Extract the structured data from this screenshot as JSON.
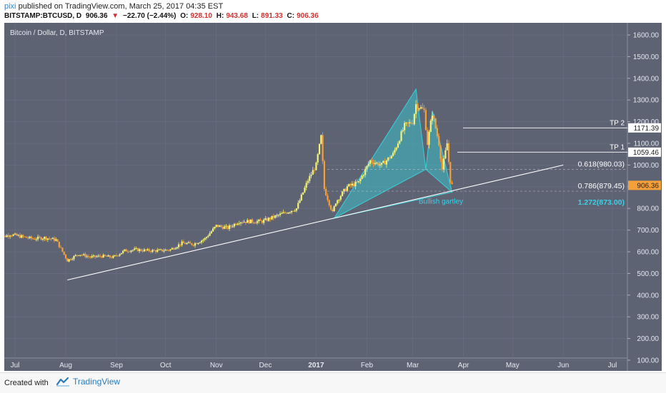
{
  "header": {
    "author": "pixi",
    "published_text": "published on TradingView.com, March 25, 2017 04:35 EST",
    "symbol": "BITSTAMP:BTCUSD, D",
    "last": "906.36",
    "change_arrow": "▼",
    "change": "−22.70 (−2.44%)",
    "o_label": "O:",
    "o_value": "928.10",
    "h_label": "H:",
    "h_value": "943.68",
    "l_label": "L:",
    "l_value": "891.33",
    "c_label": "C:",
    "c_value": "906.36"
  },
  "footer": {
    "created_with": "Created with",
    "brand": "TradingView",
    "logo_icon": "tradingview-logo-icon"
  },
  "colors": {
    "background": "#5e6374",
    "candle_up": "#f2f37a",
    "candle_down": "#f6a03a",
    "pattern_fill": "#3cc0c9",
    "pattern_line": "#3ad1d8",
    "gartley_label": "#3ad1e8",
    "trendline": "#ffffff",
    "price_badge": "#f6a03a"
  },
  "chart_data": {
    "type": "candlestick",
    "title": "Bitcoin / Dollar, D, BITSTAMP",
    "x_ticks": [
      "Jul",
      "Aug",
      "Sep",
      "Oct",
      "Nov",
      "Dec",
      "2017",
      "Feb",
      "Mar",
      "Apr",
      "May",
      "Jun",
      "Jul"
    ],
    "y_ticks": [
      "1600.00",
      "1500.00",
      "1400.00",
      "1300.00",
      "1200.00",
      "1100.00",
      "1000.00",
      "900.00",
      "800.00",
      "700.00",
      "600.00",
      "500.00",
      "400.00",
      "300.00",
      "200.00",
      "100.00"
    ],
    "ylim": [
      100,
      1650
    ],
    "grid": true,
    "price_path": [
      [
        "2016-06-20",
        660
      ],
      [
        "2016-06-28",
        680
      ],
      [
        "2016-07-05",
        670
      ],
      [
        "2016-07-12",
        660
      ],
      [
        "2016-07-19",
        665
      ],
      [
        "2016-07-26",
        655
      ],
      [
        "2016-08-02",
        560
      ],
      [
        "2016-08-09",
        590
      ],
      [
        "2016-08-16",
        575
      ],
      [
        "2016-08-23",
        580
      ],
      [
        "2016-08-30",
        575
      ],
      [
        "2016-09-06",
        605
      ],
      [
        "2016-09-13",
        610
      ],
      [
        "2016-09-20",
        605
      ],
      [
        "2016-09-27",
        605
      ],
      [
        "2016-10-04",
        610
      ],
      [
        "2016-10-11",
        640
      ],
      [
        "2016-10-18",
        635
      ],
      [
        "2016-10-25",
        660
      ],
      [
        "2016-11-01",
        720
      ],
      [
        "2016-11-08",
        710
      ],
      [
        "2016-11-15",
        740
      ],
      [
        "2016-11-22",
        740
      ],
      [
        "2016-11-29",
        740
      ],
      [
        "2016-12-06",
        760
      ],
      [
        "2016-12-13",
        780
      ],
      [
        "2016-12-20",
        800
      ],
      [
        "2016-12-27",
        930
      ],
      [
        "2017-01-01",
        1000
      ],
      [
        "2017-01-04",
        1130
      ],
      [
        "2017-01-06",
        890
      ],
      [
        "2017-01-11",
        780
      ],
      [
        "2017-01-13",
        830
      ],
      [
        "2017-01-20",
        900
      ],
      [
        "2017-01-27",
        920
      ],
      [
        "2017-02-03",
        1020
      ],
      [
        "2017-02-10",
        1000
      ],
      [
        "2017-02-17",
        1050
      ],
      [
        "2017-02-24",
        1180
      ],
      [
        "2017-03-01",
        1200
      ],
      [
        "2017-03-03",
        1280
      ],
      [
        "2017-03-08",
        1250
      ],
      [
        "2017-03-10",
        1100
      ],
      [
        "2017-03-13",
        1240
      ],
      [
        "2017-03-17",
        1100
      ],
      [
        "2017-03-19",
        980
      ],
      [
        "2017-03-22",
        1100
      ],
      [
        "2017-03-24",
        930
      ],
      [
        "2017-03-25",
        906.36
      ]
    ],
    "pattern": {
      "name": "Bullish gartley",
      "points": [
        [
          "2017-01-12",
          755
        ],
        [
          "2017-03-03",
          1350
        ],
        [
          "2017-03-09",
          980
        ],
        [
          "2017-03-13",
          1250
        ],
        [
          "2017-03-25",
          875
        ]
      ]
    },
    "trendlines": [
      {
        "from": [
          "2016-08-02",
          470
        ],
        "to": [
          "2017-06-01",
          1000
        ]
      }
    ],
    "horizontal_levels": [
      {
        "label": "TP 2",
        "value": 1171.39,
        "price_label": "1171.39",
        "style": "solid"
      },
      {
        "label": "TP 1",
        "value": 1059.46,
        "price_label": "1059.46",
        "style": "solid"
      },
      {
        "label": "0.618(980.03)",
        "value": 980.03,
        "style": "dashed"
      },
      {
        "label": "0.786(879.45)",
        "value": 879.45,
        "style": "dashed"
      },
      {
        "label": "1.272(873.00)",
        "value": 873.0,
        "style": "none"
      }
    ],
    "last_price_label": "906.36",
    "last_price": 906.36,
    "annotation": "Bullish gartley"
  }
}
